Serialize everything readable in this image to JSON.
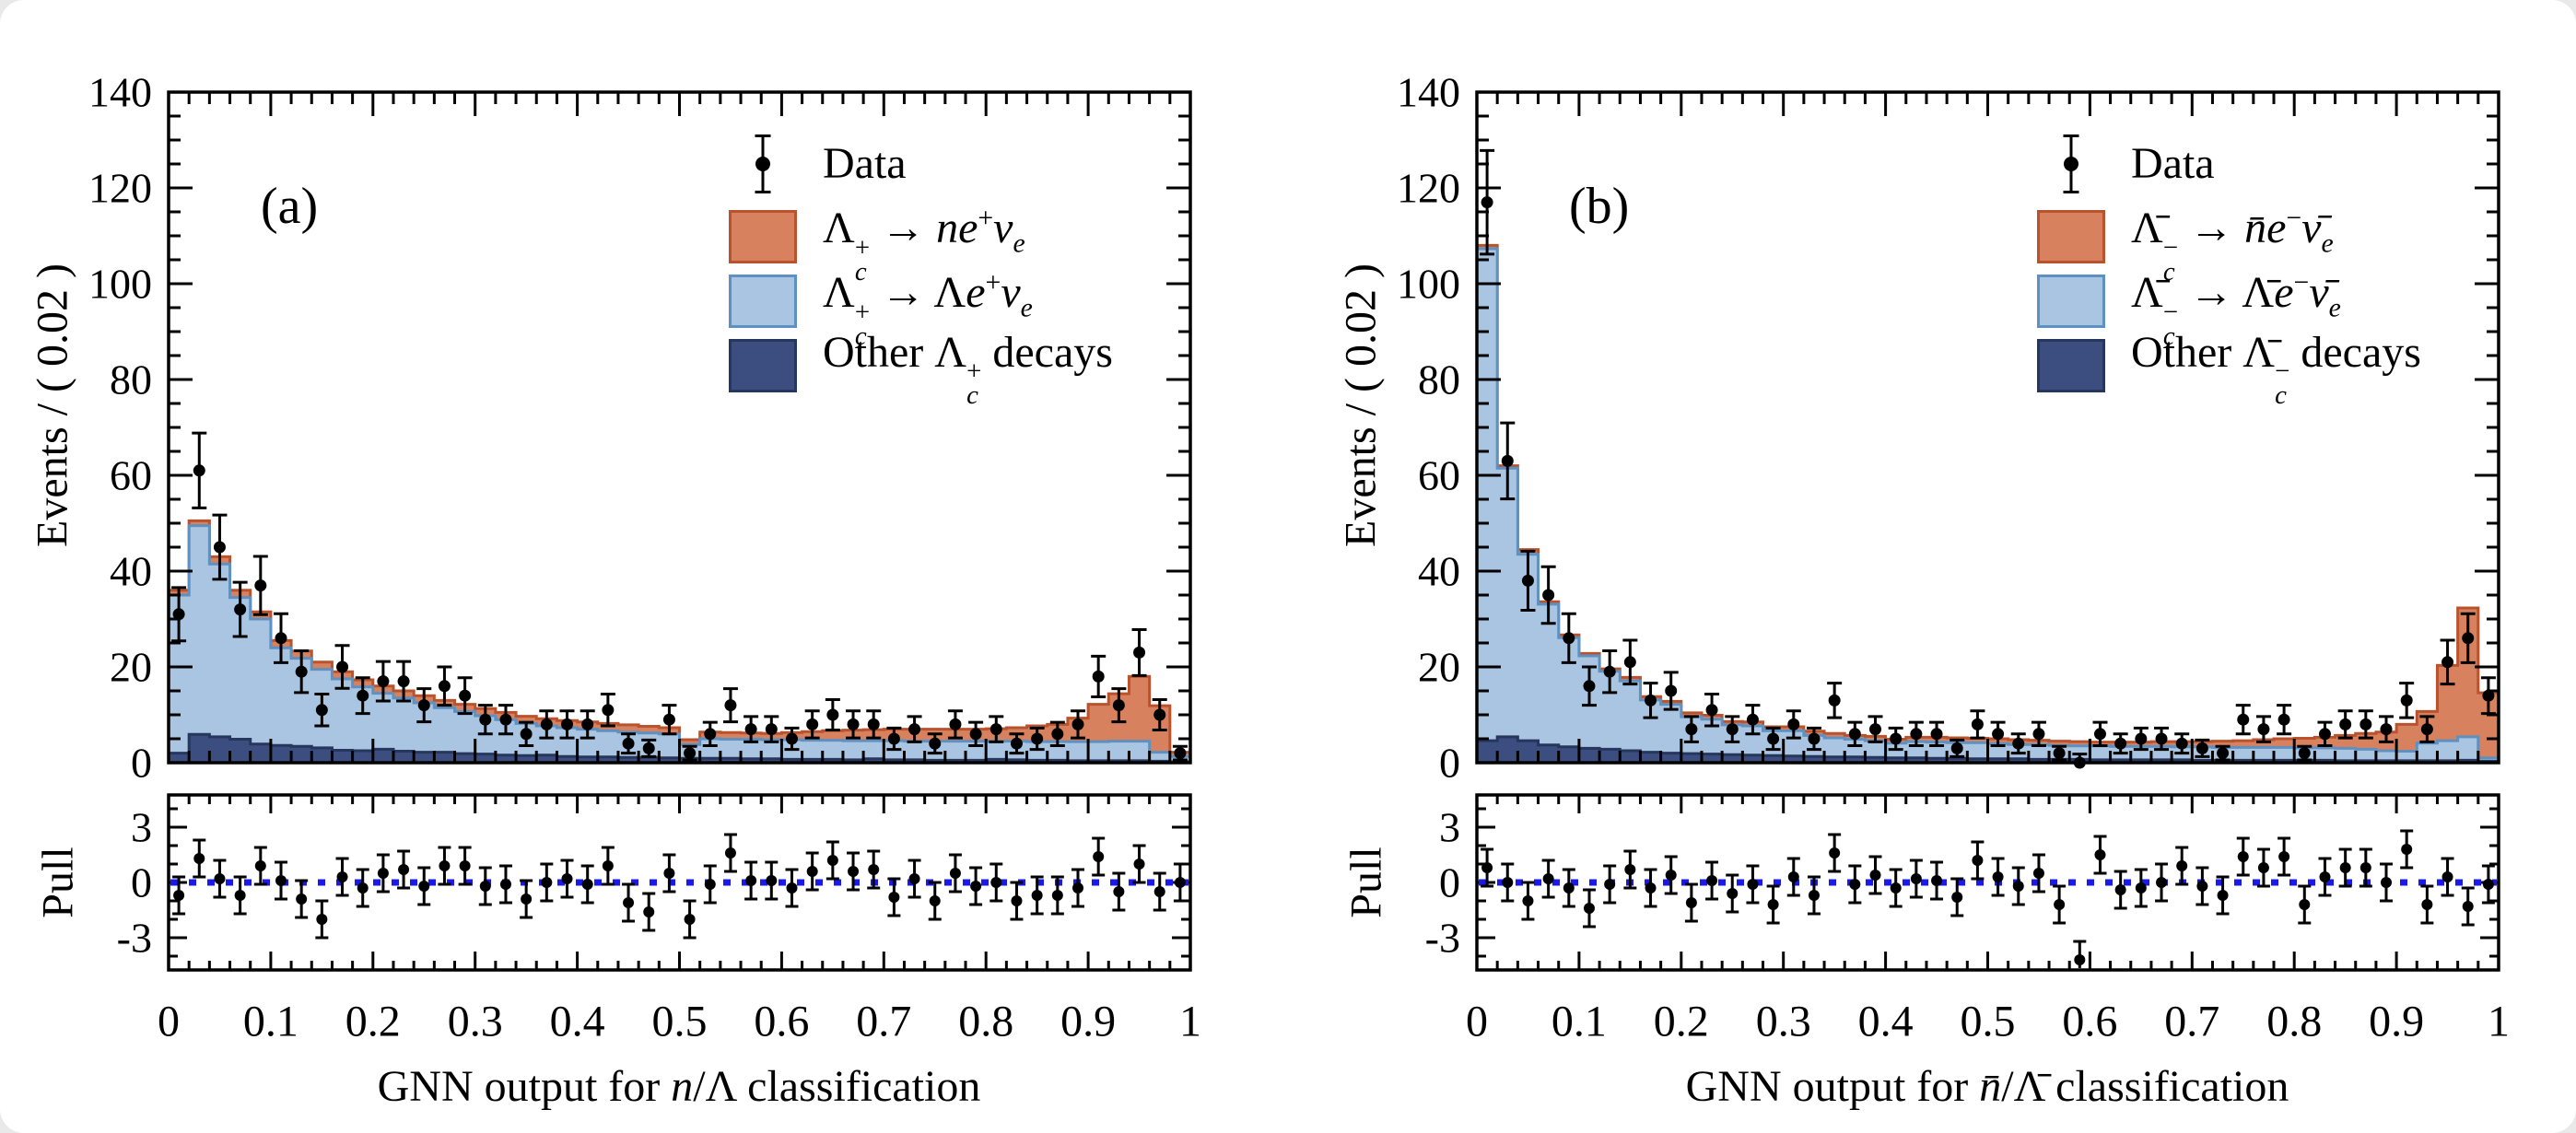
{
  "page": {
    "background": "#ffffff"
  },
  "chart_data": {
    "type": "bar",
    "subtype": "stacked-histogram-with-data-points-and-pull",
    "bin_width": 0.02,
    "n_bins": 50,
    "x_range": [
      0,
      1
    ],
    "y_range": [
      0,
      140
    ],
    "pull_range": [
      -4.75,
      4.75
    ],
    "x_tick_labels": [
      "0",
      "0.1",
      "0.2",
      "0.3",
      "0.4",
      "0.5",
      "0.6",
      "0.7",
      "0.8",
      "0.9",
      "1"
    ],
    "y_ticks": [
      0,
      20,
      40,
      60,
      80,
      100,
      120,
      140
    ],
    "pull_ticks": [
      3,
      0,
      -3
    ],
    "grid": "off",
    "legend_position": "top-right-inside",
    "error_bars": "poisson-sqrt",
    "colors": {
      "signal": {
        "fill": "#D8815F",
        "stroke": "#B9532E"
      },
      "lambda": {
        "fill": "#A9C5E2",
        "stroke": "#5E90C0"
      },
      "other": {
        "fill": "#3C4E80",
        "stroke": "#26365C"
      },
      "data": "#000000",
      "pull_line": "#1A1AE8"
    },
    "panels": [
      {
        "id": "a",
        "label": "(a)",
        "x_title": "GNN output for I{n}/Λ classification",
        "y_title": "Events / ( 0.02 )",
        "pull_title": "Pull",
        "legend": [
          {
            "label": "Data",
            "marker": "data-point"
          },
          {
            "label": "Λ_{I{c}}^{+} → I{ne}^{+}I{ν}_{I{e}}",
            "series": "signal"
          },
          {
            "label": "Λ_{I{c}}^{+} → ΛI{e}^{+}I{ν}_{I{e}}",
            "series": "lambda"
          },
          {
            "label": "Other Λ_{I{c}}^{+} decays",
            "series": "other"
          }
        ],
        "series": {
          "data_points": [
            31,
            61,
            45,
            32,
            37,
            26,
            19,
            11,
            20,
            14,
            17,
            17,
            12,
            16,
            14,
            9,
            9,
            6,
            8,
            8,
            8,
            11,
            4,
            3,
            9,
            2,
            6,
            12,
            7,
            7,
            5,
            8,
            10,
            8,
            8,
            5,
            7,
            4,
            8,
            6,
            7,
            4,
            5,
            6,
            8,
            18,
            12,
            23,
            10,
            2
          ],
          "stack_total_top": [
            36,
            50.5,
            43,
            36,
            31.5,
            25.5,
            23.3,
            21,
            19,
            17.3,
            16,
            15,
            14,
            13,
            12.2,
            11.3,
            10.5,
            9.7,
            9.2,
            8.8,
            8.5,
            8.2,
            7.9,
            7.6,
            7.3,
            4.8,
            6.4,
            6.3,
            6.2,
            6.1,
            6.3,
            6.5,
            6.7,
            6.8,
            6.9,
            7,
            7,
            7,
            7,
            7,
            7.1,
            7.3,
            7.7,
            8,
            9.3,
            12.2,
            14.4,
            18,
            11.9,
            2.2
          ],
          "stack_lambda_top": [
            35,
            49.5,
            41.5,
            34.5,
            30,
            24,
            21.8,
            19.5,
            17.5,
            15.8,
            14.5,
            13.5,
            12.5,
            11.5,
            10.7,
            9.8,
            9,
            8.2,
            7.7,
            7.3,
            7,
            6.7,
            6.4,
            6.2,
            6,
            3.8,
            5,
            4.9,
            4.9,
            4.8,
            4.8,
            4.7,
            4.7,
            4.6,
            4.6,
            4.6,
            4.5,
            4.5,
            4.5,
            4.5,
            4.5,
            4.5,
            4.4,
            4.4,
            4.4,
            4.4,
            4.5,
            4.5,
            2.2,
            1.3
          ],
          "stack_other_top": [
            2,
            5.9,
            5.4,
            4.9,
            3.9,
            3.6,
            3.4,
            3.1,
            2.6,
            2.5,
            2.8,
            2.4,
            2.2,
            2.2,
            1.9,
            1.8,
            1.6,
            1.5,
            1.6,
            1.3,
            1.2,
            1.2,
            1.1,
            1.1,
            1,
            0.9,
            0.9,
            0.9,
            0.8,
            0.8,
            0.7,
            0.7,
            0.7,
            0.6,
            0.8,
            0.6,
            0.6,
            0.5,
            0.5,
            0.5,
            0.7,
            0.6,
            0.5,
            0.5,
            0.4,
            0.4,
            0.4,
            0.4,
            0.3,
            0.2
          ]
        },
        "pull_values": [
          -0.7,
          1.3,
          0.2,
          -0.7,
          0.9,
          0.1,
          -0.9,
          -2,
          0.3,
          -0.3,
          0.5,
          0.7,
          -0.2,
          0.9,
          0.9,
          -0.2,
          -0.1,
          -0.9,
          0,
          0.2,
          -0.1,
          0.9,
          -1.1,
          -1.6,
          0.5,
          -2,
          -0.1,
          1.6,
          0.1,
          0.1,
          -0.3,
          0.6,
          1.2,
          0.6,
          0.7,
          -0.8,
          0.2,
          -1,
          0.5,
          -0.2,
          0,
          -1,
          -0.7,
          -0.7,
          -0.3,
          1.4,
          -0.5,
          1,
          -0.5,
          0
        ]
      },
      {
        "id": "b",
        "label": "(b)",
        "x_title": "GNN output for I{n̄}/Λ̄ classification",
        "y_title": "Events / ( 0.02 )",
        "pull_title": "Pull",
        "legend": [
          {
            "label": "Data",
            "marker": "data-point"
          },
          {
            "label": "Λ̄_{I{c}}^{−} → I{n̄e}^{−}I{ν̄}_{I{e}}",
            "series": "signal"
          },
          {
            "label": "Λ̄_{I{c}}^{−} → Λ̄I{e}^{−}I{ν̄}_{I{e}}",
            "series": "lambda"
          },
          {
            "label": "Other Λ̄_{I{c}}^{−} decays",
            "series": "other"
          }
        ],
        "series": {
          "data_points": [
            117,
            63,
            38,
            35,
            26,
            16,
            19,
            21,
            13,
            15,
            7,
            11,
            7,
            9,
            5,
            8,
            5,
            13,
            6,
            7,
            5,
            6,
            6,
            3,
            8,
            6,
            4,
            6,
            2,
            0,
            6,
            4,
            5,
            5,
            4,
            3,
            2,
            9,
            7,
            9,
            2,
            6,
            8,
            8,
            7,
            13,
            7,
            21,
            26,
            14
          ],
          "stack_total_top": [
            108,
            62,
            44.5,
            33.6,
            26.7,
            22.8,
            19.6,
            17.8,
            13.8,
            12.8,
            10.4,
            9.9,
            8.6,
            8.5,
            7.5,
            7.5,
            6.6,
            6.1,
            5.7,
            5.5,
            4.9,
            5.3,
            5.3,
            5.2,
            5.1,
            5,
            4.8,
            4.7,
            4.5,
            4.4,
            4.3,
            4.3,
            4.3,
            4.4,
            4.4,
            4.4,
            4.5,
            4.6,
            4.8,
            5,
            5.1,
            5.3,
            5.7,
            6.1,
            6.4,
            8,
            10.7,
            20.3,
            32.3,
            14.6
          ],
          "stack_lambda_top": [
            107.3,
            61.5,
            43.5,
            33.1,
            26.1,
            22.3,
            19.1,
            17.1,
            13.1,
            12.2,
            9.6,
            9.1,
            7.9,
            7.7,
            6.7,
            6.7,
            5.7,
            5.2,
            4.9,
            4.6,
            4.1,
            4.4,
            4.3,
            4.2,
            4.2,
            4,
            3.8,
            3.8,
            3.6,
            3.5,
            3.5,
            3.4,
            3.4,
            3.4,
            3.3,
            3.3,
            3.2,
            3.2,
            3.2,
            3.2,
            3.1,
            3.1,
            3,
            2.8,
            2.5,
            2.4,
            4.1,
            4.6,
            5.4,
            1
          ],
          "stack_other_top": [
            4.6,
            5.4,
            4.6,
            3.7,
            3.3,
            3,
            2.8,
            2.5,
            2.2,
            2,
            1.9,
            1.8,
            1.7,
            1.6,
            1.5,
            1.4,
            1.3,
            1.2,
            1.2,
            1.1,
            1,
            1,
            0.9,
            0.9,
            0.8,
            0.8,
            0.8,
            0.7,
            0.7,
            0.7,
            0.6,
            0.6,
            0.6,
            0.6,
            0.6,
            0.5,
            0.5,
            0.5,
            0.5,
            0.5,
            0.5,
            0.5,
            0.4,
            0.4,
            0.4,
            0.4,
            0.4,
            0.4,
            0.5,
            0.3
          ]
        },
        "pull_values": [
          0.8,
          0,
          -1,
          0.2,
          -0.3,
          -1.4,
          -0.1,
          0.7,
          -0.3,
          0.4,
          -1.1,
          0.1,
          -0.6,
          -0.1,
          -1.2,
          0.3,
          -0.7,
          1.6,
          -0.1,
          0.4,
          -0.3,
          0.2,
          0.1,
          -0.8,
          1.2,
          0.3,
          -0.2,
          0.5,
          -1.2,
          -4.2,
          1.5,
          -0.4,
          -0.3,
          0,
          0.9,
          -0.2,
          -0.7,
          1.4,
          0.8,
          1.4,
          -1.2,
          0.3,
          0.8,
          0.8,
          0,
          1.8,
          -1.2,
          0.3,
          -1.3,
          -0.1
        ]
      }
    ]
  }
}
